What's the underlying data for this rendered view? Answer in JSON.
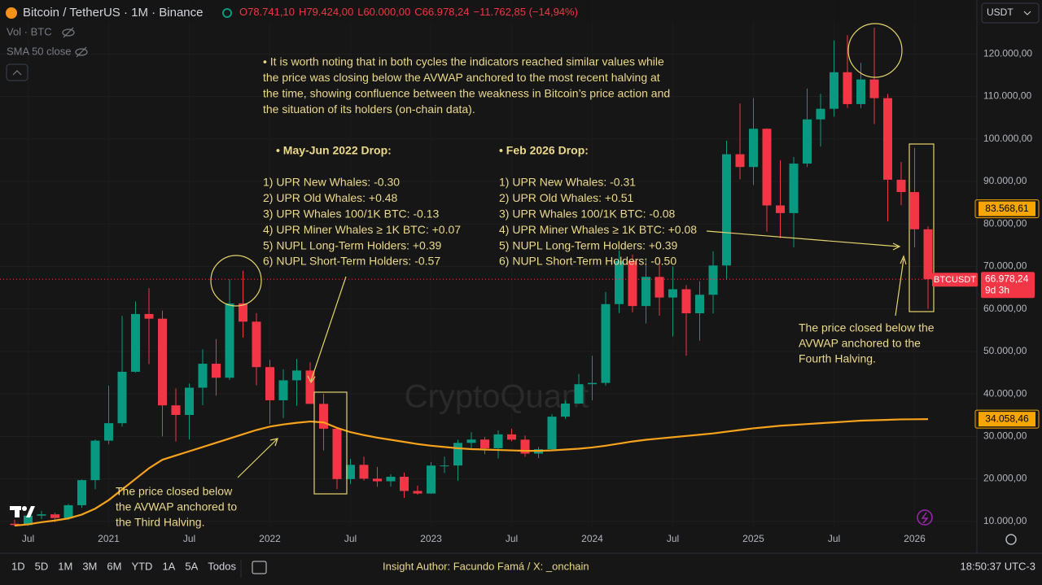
{
  "chart_data": {
    "type": "candlestick",
    "title": "Bitcoin / TetherUS · 1M · Binance",
    "ohlc_header": [
      "O78.741,10",
      "H79.424,00",
      "L60.000,00",
      "C66.978,24",
      "−11.762,85 (−14,94%)"
    ],
    "indicators": [
      "Vol · BTC",
      "SMA 50 close"
    ],
    "currency": "USDT",
    "watermark": "CryptoQuant",
    "categories": [
      null,
      "Jul",
      null,
      null,
      null,
      null,
      null,
      "2021",
      null,
      null,
      null,
      null,
      null,
      "Jul",
      null,
      null,
      null,
      null,
      null,
      "2022",
      null,
      null,
      null,
      null,
      null,
      "Jul",
      null,
      null,
      null,
      null,
      null,
      "2023",
      null,
      null,
      null,
      null,
      null,
      "Jul",
      null,
      null,
      null,
      null,
      null,
      "2024",
      null,
      null,
      null,
      null,
      null,
      "Jul",
      null,
      null,
      null,
      null,
      null,
      "2025",
      null,
      null,
      null,
      null,
      null,
      "Jul",
      null,
      null,
      null,
      null,
      null,
      "2026",
      null
    ],
    "open": [
      9450,
      9140,
      11350,
      11650,
      10780,
      13800,
      19700,
      28990,
      33100,
      45200,
      58800,
      57700,
      37300,
      35040,
      41460,
      47100,
      43800,
      61300,
      57000,
      46300,
      38500,
      43200,
      45500,
      37650,
      31800,
      19950,
      23300,
      20050,
      19430,
      20500,
      17150,
      16550,
      23130,
      23150,
      28470,
      29250,
      27200,
      30470,
      29230,
      25940,
      26970,
      34640,
      37720,
      42280,
      42580,
      61130,
      71280,
      60670,
      67530,
      62680,
      64630,
      58970,
      63330,
      70220,
      96400,
      93400,
      102400,
      84350,
      82550,
      94200,
      104600,
      107100,
      115700,
      108200,
      114000,
      109600,
      90400,
      87500,
      78741.1
    ],
    "high": [
      10380,
      11440,
      12470,
      12070,
      14100,
      19860,
      29300,
      41950,
      58350,
      61780,
      64900,
      59600,
      41300,
      42450,
      50500,
      52900,
      67000,
      69000,
      59000,
      48000,
      45800,
      48200,
      47450,
      40000,
      31900,
      24700,
      25200,
      22800,
      21100,
      21480,
      18400,
      23950,
      25250,
      29200,
      31000,
      29850,
      31400,
      31800,
      30200,
      27500,
      35200,
      38450,
      44700,
      48970,
      64000,
      73800,
      72800,
      71950,
      72000,
      70000,
      65600,
      66500,
      73600,
      99600,
      108350,
      109600,
      102500,
      95000,
      95750,
      111900,
      110600,
      123200,
      124450,
      117900,
      126200,
      110600,
      94600,
      97900,
      79424
    ],
    "low": [
      8900,
      8980,
      10530,
      9820,
      10370,
      13200,
      17570,
      28130,
      32300,
      45000,
      47000,
      30000,
      28800,
      29280,
      37330,
      39600,
      43300,
      53250,
      42000,
      32900,
      34300,
      37200,
      37700,
      26700,
      17600,
      18800,
      19600,
      18150,
      18200,
      15500,
      16250,
      16500,
      21350,
      19550,
      26950,
      25800,
      24800,
      28850,
      25200,
      24900,
      26550,
      34100,
      37600,
      38500,
      41880,
      59000,
      59200,
      56550,
      58400,
      53500,
      49000,
      52550,
      58900,
      66800,
      90500,
      89150,
      78200,
      76600,
      74500,
      93400,
      98200,
      105250,
      107300,
      107250,
      103500,
      80600,
      84400,
      74500,
      60000
    ],
    "close": [
      9140,
      11350,
      11650,
      10780,
      13800,
      19700,
      28990,
      33100,
      45200,
      58800,
      57700,
      37300,
      35040,
      41460,
      47100,
      43800,
      61300,
      57000,
      46300,
      38500,
      43200,
      45500,
      37650,
      31800,
      19950,
      23300,
      20050,
      19430,
      20500,
      17150,
      16550,
      23130,
      23150,
      28470,
      29250,
      27200,
      30470,
      29230,
      25940,
      26970,
      34640,
      37720,
      42280,
      42580,
      61130,
      71280,
      60670,
      67530,
      62680,
      64630,
      58970,
      63330,
      70220,
      96400,
      93400,
      102400,
      84350,
      82550,
      94200,
      104600,
      107100,
      115700,
      108200,
      114000,
      109600,
      90400,
      87500,
      78741.1,
      66978.24
    ],
    "up_color": "#089981",
    "down_color": "#f23645",
    "avwap": {
      "color": "#f7a21b",
      "values": [
        9000,
        9300,
        9800,
        10200,
        10700,
        11600,
        13000,
        15000,
        17500,
        20000,
        22500,
        24500,
        25500,
        26500,
        27500,
        28500,
        29500,
        30500,
        31500,
        32300,
        32800,
        33200,
        33500,
        33300,
        32000,
        31000,
        30300,
        29700,
        29200,
        28700,
        28200,
        27800,
        27500,
        27200,
        27000,
        26900,
        26800,
        26700,
        26600,
        26600,
        26700,
        26900,
        27100,
        27400,
        27800,
        28300,
        28800,
        29200,
        29500,
        29800,
        30100,
        30400,
        30700,
        31100,
        31500,
        31900,
        32200,
        32500,
        32700,
        32900,
        33100,
        33300,
        33500,
        33700,
        33800,
        33900,
        34000,
        34030,
        34058.46
      ]
    },
    "ylim": [
      2490,
      132700
    ],
    "yticks": [
      {
        "value": 10000,
        "label": "10.000,00"
      },
      {
        "value": 20000,
        "label": "20.000,00"
      },
      {
        "value": 30000,
        "label": "30.000,00"
      },
      {
        "value": 40000,
        "label": "40.000,00"
      },
      {
        "value": 50000,
        "label": "50.000,00"
      },
      {
        "value": 60000,
        "label": "60.000,00"
      },
      {
        "value": 70000,
        "label": "70.000,00"
      },
      {
        "value": 80000,
        "label": "80.000,00"
      },
      {
        "value": 90000,
        "label": "90.000,00"
      },
      {
        "value": 100000,
        "label": "100.000,00"
      },
      {
        "value": 110000,
        "label": "110.000,00"
      },
      {
        "value": 120000,
        "label": "120.000,00"
      }
    ],
    "grid": true,
    "price_tags": [
      {
        "value": 83568.61,
        "label": "83.568,61",
        "color": "#f7a600"
      },
      {
        "value": 34058.46,
        "label": "34.058,46",
        "color": "#f7a600"
      }
    ],
    "last_price": {
      "symbol": "BTCUSDT",
      "label": "66.978,24",
      "countdown": "9d 3h",
      "color": "#f23645"
    },
    "annotations": [
      {
        "lines": [
          "• It is worth noting that in both cycles the indicators reached similar values while",
          "the price was closing below the AVWAP anchored to the most recent halving at",
          "the time, showing confluence between the weakness in Bitcoin’s price action and",
          "the situation of its holders (on-chain data)."
        ]
      },
      {
        "title": "• May-Jun 2022 Drop:",
        "lines": [
          "1) UPR New Whales: -0.30",
          "2) UPR Old Whales: +0.48",
          "3) UPR Whales 100/1K BTC: -0.13",
          "4) UPR Miner Whales ≥ 1K BTC: +0.07",
          "5) NUPL Long-Term Holders: +0.39",
          "6) NUPL Short-Term Holders: -0.57"
        ]
      },
      {
        "title": "• Feb 2026 Drop:",
        "lines": [
          "1) UPR New Whales: -0.31",
          "2) UPR Old Whales: +0.51",
          "3) UPR Whales 100/1K BTC: -0.08",
          "4) UPR Miner Whales ≥ 1K BTC: +0.08",
          "5) NUPL Long-Term Holders: +0.39",
          "6) NUPL Short-Term Holders: -0.50"
        ]
      },
      {
        "lines": [
          "The price closed below",
          "the AVWAP anchored to",
          "the Third Halving."
        ]
      },
      {
        "lines": [
          "The price closed below the",
          "AVWAP anchored to the",
          "Fourth Halving."
        ]
      }
    ]
  },
  "toolbar": {
    "ranges": [
      "1D",
      "5D",
      "1M",
      "3M",
      "6M",
      "YTD",
      "1A",
      "5A",
      "Todos"
    ],
    "author": "Insight Author: Facundo Famá / X: _onchain",
    "clock": "18:50:37 UTC-3"
  }
}
